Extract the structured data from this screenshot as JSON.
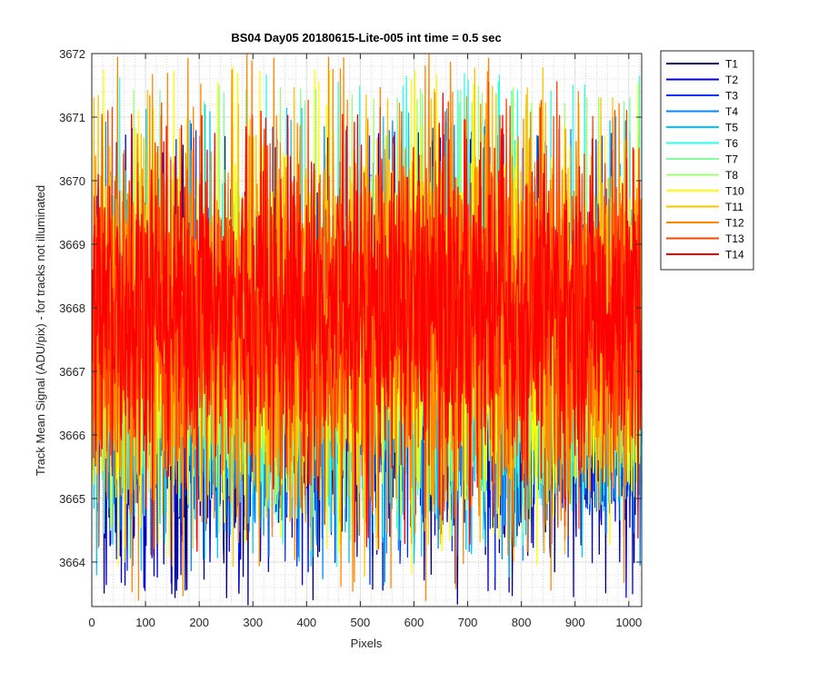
{
  "chart_data": {
    "type": "line",
    "title": "BS04 Day05 20180615-Lite-005 int time = 0.5 sec",
    "xlabel": "Pixels",
    "ylabel": "Track Mean Signal (ADU/pix) - for tracks not illuminated",
    "xlim": [
      0,
      1024
    ],
    "ylim": [
      3663.3,
      3672
    ],
    "xticks": [
      0,
      100,
      200,
      300,
      400,
      500,
      600,
      700,
      800,
      900,
      1000
    ],
    "yticks": [
      3664,
      3665,
      3666,
      3667,
      3668,
      3669,
      3670,
      3671,
      3672
    ],
    "grid": "on (major and minor)",
    "legend_placement": "outside-right",
    "points_per_series": 1024,
    "series": [
      {
        "name": "T1",
        "color": "#00007f",
        "mean": 3666.7,
        "range": [
          3663.3,
          3670.8
        ]
      },
      {
        "name": "T2",
        "color": "#0000d4",
        "mean": 3666.8,
        "range": [
          3663.5,
          3670.8
        ]
      },
      {
        "name": "T3",
        "color": "#0033ff",
        "mean": 3666.9,
        "range": [
          3663.8,
          3670.9
        ]
      },
      {
        "name": "T4",
        "color": "#0088ff",
        "mean": 3667.0,
        "range": [
          3664.0,
          3671.0
        ]
      },
      {
        "name": "T5",
        "color": "#00c8ff",
        "mean": 3667.1,
        "range": [
          3663.8,
          3671.2
        ]
      },
      {
        "name": "T6",
        "color": "#2affe8",
        "mean": 3667.3,
        "range": [
          3664.2,
          3671.7
        ]
      },
      {
        "name": "T7",
        "color": "#7fffa0",
        "mean": 3667.4,
        "range": [
          3664.5,
          3671.5
        ]
      },
      {
        "name": "T8",
        "color": "#a0ff70",
        "mean": 3667.5,
        "range": [
          3664.6,
          3671.5
        ]
      },
      {
        "name": "T10",
        "color": "#ffff00",
        "mean": 3667.7,
        "range": [
          3664.0,
          3671.8
        ]
      },
      {
        "name": "T11",
        "color": "#ffc400",
        "mean": 3667.8,
        "range": [
          3664.1,
          3671.5
        ]
      },
      {
        "name": "T12",
        "color": "#ff8800",
        "mean": 3667.8,
        "range": [
          3663.4,
          3672.0
        ]
      },
      {
        "name": "T13",
        "color": "#ff4400",
        "mean": 3667.9,
        "range": [
          3664.5,
          3671.3
        ]
      },
      {
        "name": "T14",
        "color": "#ff0000",
        "mean": 3668.0,
        "range": [
          3664.1,
          3671.1
        ]
      }
    ]
  }
}
